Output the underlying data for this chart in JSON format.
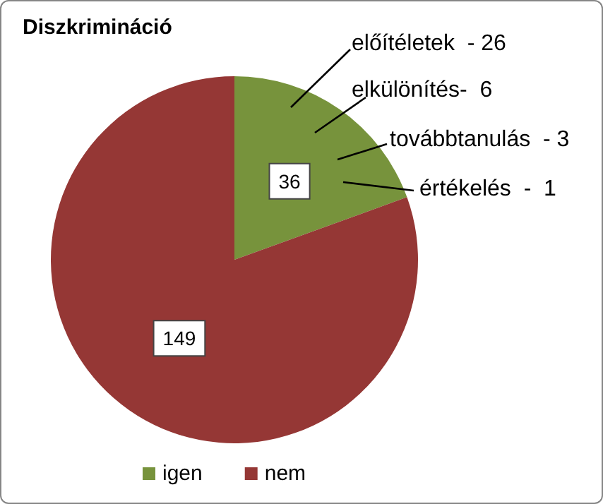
{
  "chart_data": {
    "type": "pie",
    "title": "Diszkrimináció",
    "categories": [
      "igen",
      "nem"
    ],
    "values": [
      36,
      149
    ],
    "colors": [
      "#77933c",
      "#953735"
    ],
    "data_labels": true,
    "legend": "bottom",
    "annotations": [
      "előítéletek  - 26",
      "elkülönítés-  6",
      "továbbtanulás  - 3",
      "értékelés  -  1"
    ]
  }
}
